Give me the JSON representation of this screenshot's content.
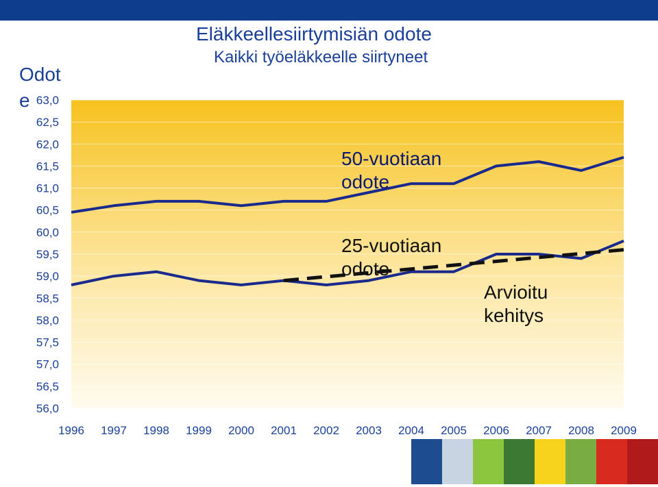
{
  "header": {
    "title": "Eläkkeellesiirtymisiän odote",
    "subtitle": "Kaikki työeläkkeelle siirtyneet",
    "side_label": "Odote"
  },
  "annotations": {
    "label_50": "50-vuotiaan odote",
    "label_25": "25-vuotiaan odote",
    "label_estimate": "Arvioitu kehitys"
  },
  "chart_data": {
    "type": "line",
    "x": [
      1996,
      1997,
      1998,
      1999,
      2000,
      2001,
      2002,
      2003,
      2004,
      2005,
      2006,
      2007,
      2008,
      2009
    ],
    "xlabels": [
      "1996",
      "1997",
      "1998",
      "1999",
      "2000",
      "2001",
      "2002",
      "2003",
      "2004",
      "2005",
      "2006",
      "2007",
      "2008",
      "2009"
    ],
    "ylim": [
      56.0,
      63.0
    ],
    "yticks": [
      56.0,
      56.5,
      57.0,
      57.5,
      58.0,
      58.5,
      59.0,
      59.5,
      60.0,
      60.5,
      61.0,
      61.5,
      62.0,
      62.5,
      63.0
    ],
    "ytick_labels": [
      "56,0",
      "56,5",
      "57,0",
      "57,5",
      "58,0",
      "58,5",
      "59,0",
      "59,5",
      "60,0",
      "60,5",
      "61,0",
      "61,5",
      "62,0",
      "62,5",
      "63,0"
    ],
    "grid": true,
    "series": [
      {
        "name": "50-vuotiaan odote",
        "style": "solid",
        "color": "#1a2a8c",
        "x": [
          1996,
          1997,
          1998,
          1999,
          2000,
          2001,
          2002,
          2003,
          2004,
          2005,
          2006,
          2007,
          2008,
          2009
        ],
        "values": [
          60.45,
          60.6,
          60.7,
          60.7,
          60.6,
          60.7,
          60.7,
          60.9,
          61.1,
          61.1,
          61.5,
          61.6,
          61.4,
          61.7
        ]
      },
      {
        "name": "25-vuotiaan odote",
        "style": "solid",
        "color": "#1a2a8c",
        "x": [
          1996,
          1997,
          1998,
          1999,
          2000,
          2001,
          2002,
          2003,
          2004,
          2005,
          2006,
          2007,
          2008,
          2009
        ],
        "values": [
          58.8,
          59.0,
          59.1,
          58.9,
          58.8,
          58.9,
          58.8,
          58.9,
          59.1,
          59.1,
          59.5,
          59.5,
          59.4,
          59.8
        ]
      },
      {
        "name": "Arvioitu kehitys",
        "style": "dashed",
        "color": "#111111",
        "x": [
          2001,
          2009
        ],
        "values": [
          58.9,
          59.6
        ]
      }
    ]
  },
  "colors": {
    "topbar": "#0d3d8c",
    "title": "#1a3f99",
    "plot_top": "#f6c21f",
    "plot_bottom": "#fffbee",
    "line": "#1a2a8c",
    "dashed": "#111111",
    "tick_text": "#1a3f99"
  },
  "photo_strip": [
    {
      "name": "blue-tile",
      "color": "#1d4c91"
    },
    {
      "name": "winter-tree-image",
      "color": "#c9d4e2"
    },
    {
      "name": "green-tile",
      "color": "#8cc53e"
    },
    {
      "name": "flowers-image",
      "color": "#3c7a34"
    },
    {
      "name": "yellow-tile",
      "color": "#f7d31e"
    },
    {
      "name": "field-image",
      "color": "#79ad44"
    },
    {
      "name": "red-tile",
      "color": "#d82a1e"
    },
    {
      "name": "berries-image",
      "color": "#b01a1a"
    }
  ]
}
